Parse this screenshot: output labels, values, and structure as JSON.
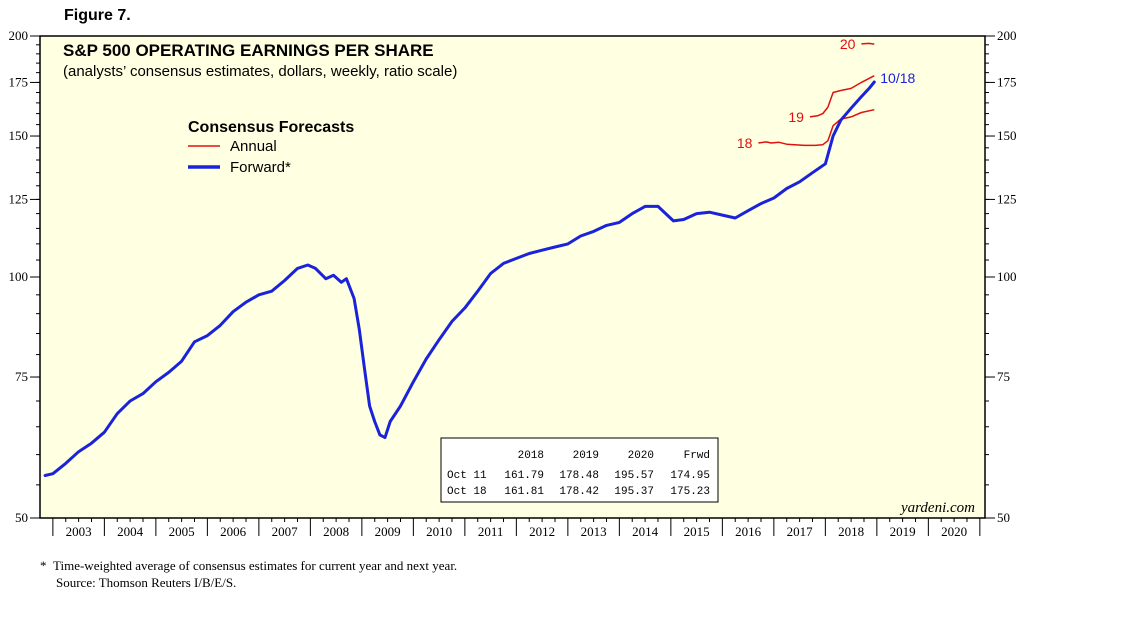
{
  "figure_label": "Figure 7.",
  "footnote_symbol": "*",
  "footnote": "Time-weighted average of consensus estimates for current year and next year.",
  "source": "Source: Thomson Reuters I/B/E/S.",
  "colors": {
    "panel_bg": "#ffffe1",
    "forward": "#1a23d9",
    "annual": "#e01010",
    "axis": "#000000"
  },
  "chart_data": {
    "type": "line",
    "title": "S&P 500 OPERATING EARNINGS PER SHARE",
    "subtitle": "(analysts’ consensus estimates, dollars, weekly, ratio scale)",
    "y_scale": "log",
    "ylim": [
      50,
      200
    ],
    "xlim": [
      2002.75,
      2021.1
    ],
    "y_ticks": [
      50,
      75,
      100,
      125,
      150,
      175,
      200
    ],
    "x_tick_labels": [
      "2003",
      "2004",
      "2005",
      "2006",
      "2007",
      "2008",
      "2009",
      "2010",
      "2011",
      "2012",
      "2013",
      "2014",
      "2015",
      "2016",
      "2017",
      "2018",
      "2019",
      "2020"
    ],
    "legend": {
      "title": "Consensus Forecasts",
      "placement": "top-left",
      "entries": [
        {
          "label": "Annual",
          "series": "annual"
        },
        {
          "label": "Forward*",
          "series": "forward"
        }
      ]
    },
    "watermark": "yardeni.com",
    "end_label": "10/18",
    "series": [
      {
        "name": "Forward*",
        "key": "forward",
        "points": [
          [
            2002.85,
            56.5
          ],
          [
            2003.0,
            56.8
          ],
          [
            2003.25,
            58.5
          ],
          [
            2003.5,
            60.5
          ],
          [
            2003.75,
            62
          ],
          [
            2004.0,
            64
          ],
          [
            2004.25,
            67.5
          ],
          [
            2004.5,
            70
          ],
          [
            2004.75,
            71.5
          ],
          [
            2005.0,
            74
          ],
          [
            2005.25,
            76
          ],
          [
            2005.5,
            78.5
          ],
          [
            2005.75,
            83
          ],
          [
            2006.0,
            84.5
          ],
          [
            2006.25,
            87
          ],
          [
            2006.5,
            90.5
          ],
          [
            2006.75,
            93
          ],
          [
            2007.0,
            95
          ],
          [
            2007.25,
            96
          ],
          [
            2007.5,
            99
          ],
          [
            2007.75,
            102.5
          ],
          [
            2007.95,
            103.5
          ],
          [
            2008.1,
            102.5
          ],
          [
            2008.3,
            99.5
          ],
          [
            2008.45,
            100.5
          ],
          [
            2008.6,
            98.5
          ],
          [
            2008.7,
            99.5
          ],
          [
            2008.85,
            94
          ],
          [
            2008.95,
            86
          ],
          [
            2009.05,
            77
          ],
          [
            2009.15,
            69
          ],
          [
            2009.25,
            66
          ],
          [
            2009.35,
            63.5
          ],
          [
            2009.45,
            63
          ],
          [
            2009.55,
            66
          ],
          [
            2009.75,
            69
          ],
          [
            2010.0,
            74
          ],
          [
            2010.25,
            79
          ],
          [
            2010.5,
            83.5
          ],
          [
            2010.75,
            88
          ],
          [
            2011.0,
            91.5
          ],
          [
            2011.25,
            96
          ],
          [
            2011.5,
            101
          ],
          [
            2011.75,
            104
          ],
          [
            2012.0,
            105.5
          ],
          [
            2012.25,
            107
          ],
          [
            2012.5,
            108
          ],
          [
            2012.75,
            109
          ],
          [
            2013.0,
            110
          ],
          [
            2013.25,
            112.5
          ],
          [
            2013.5,
            114
          ],
          [
            2013.75,
            116
          ],
          [
            2014.0,
            117
          ],
          [
            2014.25,
            120
          ],
          [
            2014.5,
            122.5
          ],
          [
            2014.75,
            122.5
          ],
          [
            2014.9,
            120
          ],
          [
            2015.05,
            117.5
          ],
          [
            2015.25,
            118
          ],
          [
            2015.5,
            120
          ],
          [
            2015.75,
            120.5
          ],
          [
            2016.0,
            119.5
          ],
          [
            2016.25,
            118.5
          ],
          [
            2016.5,
            121
          ],
          [
            2016.75,
            123.5
          ],
          [
            2017.0,
            125.5
          ],
          [
            2017.25,
            129
          ],
          [
            2017.5,
            131.5
          ],
          [
            2017.75,
            135
          ],
          [
            2018.0,
            138.5
          ],
          [
            2018.15,
            150
          ],
          [
            2018.3,
            157
          ],
          [
            2018.5,
            162.5
          ],
          [
            2018.7,
            168
          ],
          [
            2018.85,
            172
          ],
          [
            2018.95,
            175.2
          ]
        ]
      },
      {
        "name": "Annual",
        "key": "annual",
        "segments": [
          {
            "label": "18",
            "points": [
              [
                2016.7,
                147
              ],
              [
                2016.85,
                147.5
              ],
              [
                2016.95,
                147
              ],
              [
                2017.1,
                147.3
              ],
              [
                2017.25,
                146.5
              ],
              [
                2017.4,
                146.3
              ],
              [
                2017.6,
                146
              ],
              [
                2017.8,
                146
              ],
              [
                2017.95,
                146.3
              ],
              [
                2018.05,
                148
              ],
              [
                2018.15,
                154.5
              ],
              [
                2018.3,
                157.5
              ],
              [
                2018.5,
                158.5
              ],
              [
                2018.7,
                160.5
              ],
              [
                2018.95,
                161.8
              ]
            ]
          },
          {
            "label": "19",
            "points": [
              [
                2017.7,
                158.5
              ],
              [
                2017.85,
                159
              ],
              [
                2017.95,
                160
              ],
              [
                2018.05,
                163
              ],
              [
                2018.15,
                170
              ],
              [
                2018.3,
                171
              ],
              [
                2018.5,
                172
              ],
              [
                2018.7,
                175
              ],
              [
                2018.95,
                178.4
              ]
            ]
          },
          {
            "label": "20",
            "points": [
              [
                2018.7,
                195.5
              ],
              [
                2018.85,
                195.8
              ],
              [
                2018.95,
                195.4
              ]
            ]
          }
        ]
      }
    ],
    "table": {
      "columns": [
        "",
        "2018",
        "2019",
        "2020",
        "Frwd"
      ],
      "rows": [
        [
          "Oct 11",
          "161.79",
          "178.48",
          "195.57",
          "174.95"
        ],
        [
          "Oct 18",
          "161.81",
          "178.42",
          "195.37",
          "175.23"
        ]
      ]
    }
  }
}
